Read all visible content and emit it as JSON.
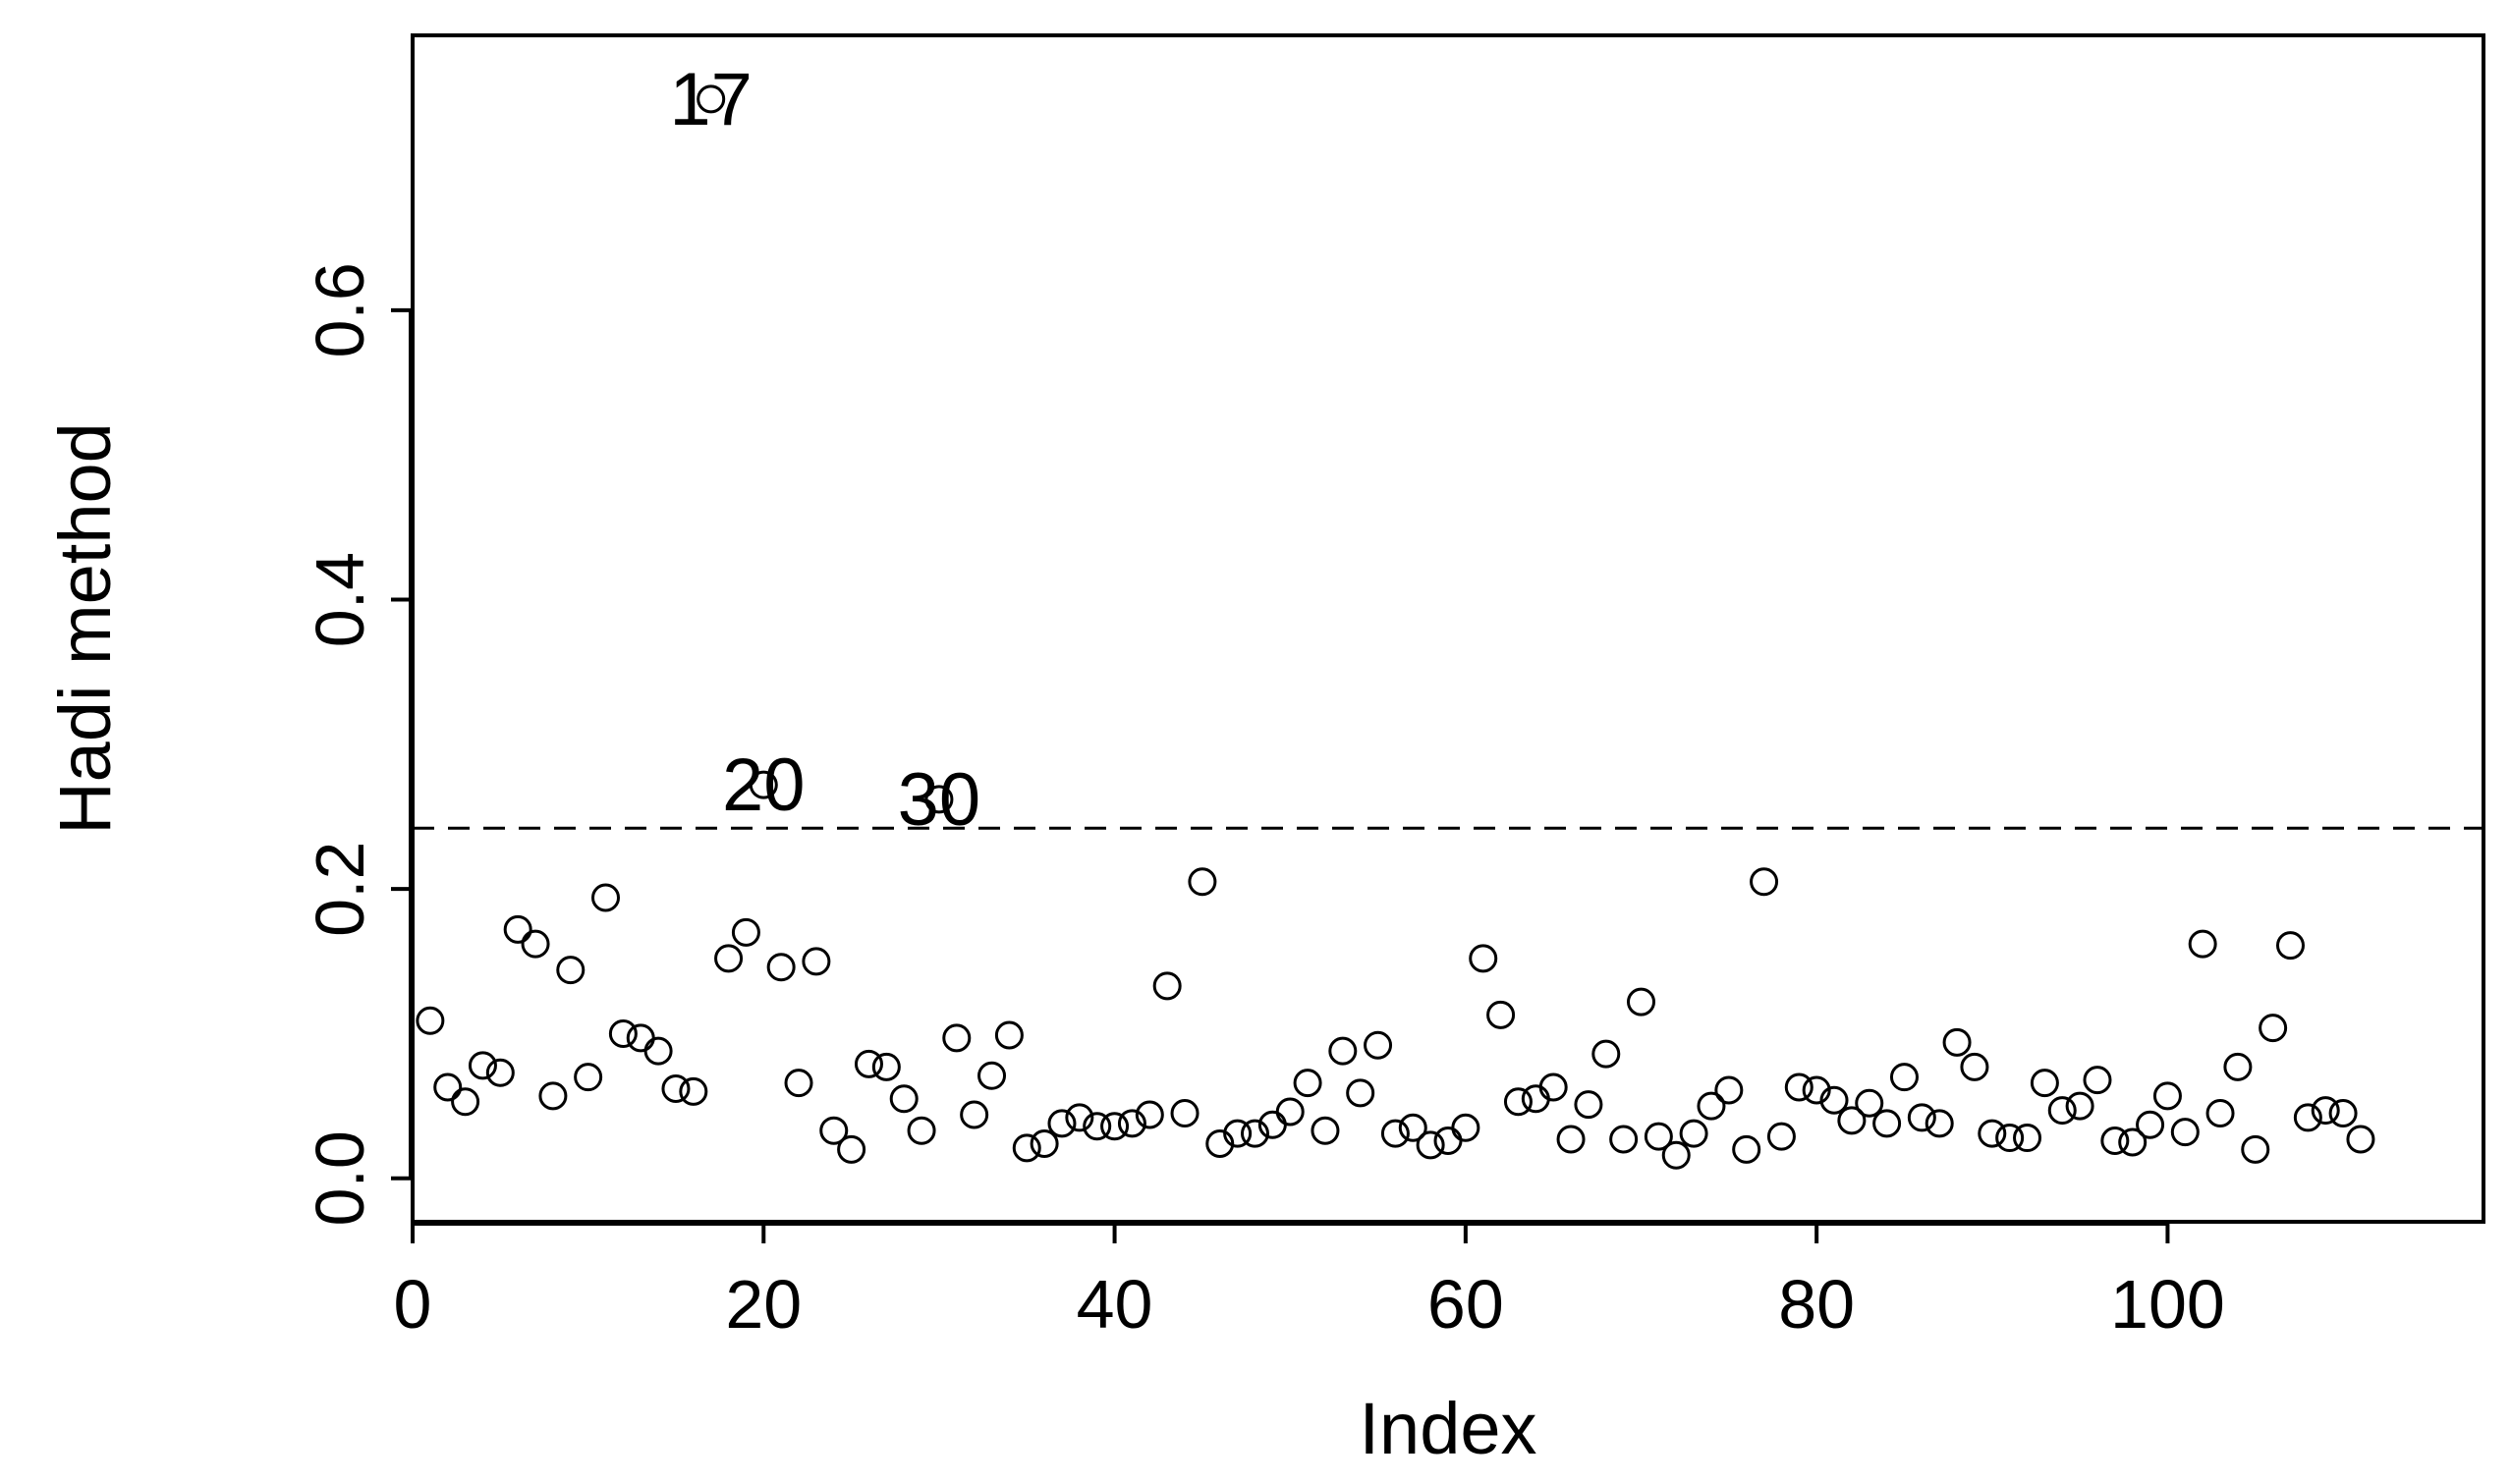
{
  "chart_data": {
    "type": "scatter",
    "title": "",
    "xlabel": "Index",
    "ylabel": "Hadi method",
    "xlim": [
      0,
      118
    ],
    "ylim": [
      -0.03,
      0.79
    ],
    "x_ticks": [
      0,
      20,
      40,
      60,
      80,
      100
    ],
    "x_tick_labels": [
      "0",
      "20",
      "40",
      "60",
      "80",
      "100"
    ],
    "y_ticks": [
      0.0,
      0.2,
      0.4,
      0.6
    ],
    "y_tick_labels": [
      "0.0",
      "0.2",
      "0.4",
      "0.6"
    ],
    "threshold": 0.242,
    "x": [
      1,
      2,
      3,
      4,
      5,
      6,
      7,
      8,
      9,
      10,
      11,
      12,
      13,
      14,
      15,
      16,
      17,
      18,
      19,
      20,
      21,
      22,
      23,
      24,
      25,
      26,
      27,
      28,
      29,
      30,
      31,
      32,
      33,
      34,
      35,
      36,
      37,
      38,
      39,
      40,
      41,
      42,
      43,
      44,
      45,
      46,
      47,
      48,
      49,
      50,
      51,
      52,
      53,
      54,
      55,
      56,
      57,
      58,
      59,
      60,
      61,
      62,
      63,
      64,
      65,
      66,
      67,
      68,
      69,
      70,
      71,
      72,
      73,
      74,
      75,
      76,
      77,
      78,
      79,
      80,
      81,
      82,
      83,
      84,
      85,
      86,
      87,
      88,
      89,
      90,
      91,
      92,
      93,
      94,
      95,
      96,
      97,
      98,
      99,
      100,
      101,
      102,
      103,
      104,
      105,
      106,
      107,
      108,
      109,
      110,
      111
    ],
    "y": [
      0.109,
      0.063,
      0.053,
      0.078,
      0.073,
      0.172,
      0.162,
      0.057,
      0.144,
      0.07,
      0.194,
      0.1,
      0.097,
      0.088,
      0.062,
      0.06,
      0.746,
      0.152,
      0.17,
      0.272,
      0.146,
      0.066,
      0.15,
      0.033,
      0.02,
      0.079,
      0.077,
      0.055,
      0.033,
      0.262,
      0.097,
      0.044,
      0.071,
      0.099,
      0.021,
      0.024,
      0.038,
      0.042,
      0.036,
      0.036,
      0.038,
      0.044,
      0.133,
      0.045,
      0.205,
      0.024,
      0.031,
      0.031,
      0.037,
      0.046,
      0.066,
      0.033,
      0.088,
      0.059,
      0.092,
      0.031,
      0.035,
      0.023,
      0.026,
      0.035,
      0.152,
      0.113,
      0.053,
      0.055,
      0.063,
      0.027,
      0.051,
      0.086,
      0.027,
      0.122,
      0.029,
      0.016,
      0.031,
      0.05,
      0.061,
      0.02,
      0.205,
      0.029,
      0.063,
      0.061,
      0.054,
      0.04,
      0.052,
      0.038,
      0.07,
      0.042,
      0.038,
      0.094,
      0.077,
      0.031,
      0.028,
      0.028,
      0.066,
      0.047,
      0.05,
      0.068,
      0.026,
      0.025,
      0.037,
      0.057,
      0.032,
      0.162,
      0.045,
      0.077,
      0.02,
      0.104,
      0.161,
      0.042,
      0.047,
      0.045,
      0.027
    ],
    "point_labels": [
      {
        "x": 17,
        "y": 0.746,
        "text": "17"
      },
      {
        "x": 20,
        "y": 0.272,
        "text": "20"
      },
      {
        "x": 30,
        "y": 0.262,
        "text": "30"
      }
    ],
    "grid": false,
    "marker": "open-circle",
    "line_style": "dashed",
    "color": "#000000"
  }
}
